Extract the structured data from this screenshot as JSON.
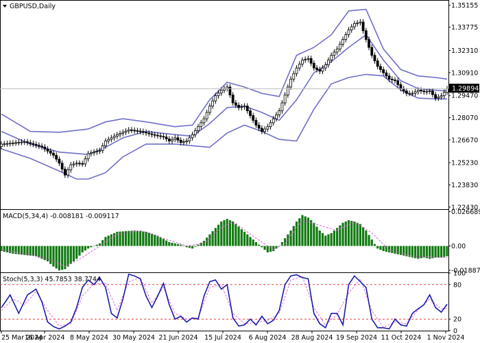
{
  "chart_data": {
    "type": "candlestick",
    "symbol_label": "GBPUSD,Daily",
    "last_price": "1.29894",
    "price_axis": {
      "ticks": [
        "1.35155",
        "1.33775",
        "1.32310",
        "1.30910",
        "1.29470",
        "1.28070",
        "1.26670",
        "1.25230",
        "1.23830",
        "1.22430"
      ],
      "ylim": [
        1.22295,
        1.35445
      ]
    },
    "date_labels": [
      "25 Mar 2024",
      "16 Apr 2024",
      "8 May 2024",
      "30 May 2024",
      "21 Jun 2024",
      "15 Jul 2024",
      "6 Aug 2024",
      "28 Aug 2024",
      "19 Sep 2024",
      "11 Oct 2024",
      "1 Nov 2024"
    ],
    "price_path": [
      [
        0,
        1.264
      ],
      [
        8,
        1.2655
      ],
      [
        14,
        1.2622
      ],
      [
        18,
        1.257
      ],
      [
        20,
        1.252
      ],
      [
        22,
        1.2445
      ],
      [
        24,
        1.251
      ],
      [
        26,
        1.252
      ],
      [
        28,
        1.2515
      ],
      [
        30,
        1.258
      ],
      [
        34,
        1.26
      ],
      [
        36,
        1.266
      ],
      [
        40,
        1.27
      ],
      [
        44,
        1.273
      ],
      [
        48,
        1.272
      ],
      [
        52,
        1.27
      ],
      [
        56,
        1.2685
      ],
      [
        58,
        1.266
      ],
      [
        60,
        1.268
      ],
      [
        62,
        1.265
      ],
      [
        64,
        1.266
      ],
      [
        66,
        1.27
      ],
      [
        68,
        1.275
      ],
      [
        70,
        1.28
      ],
      [
        72,
        1.288
      ],
      [
        74,
        1.2945
      ],
      [
        76,
        1.298
      ],
      [
        78,
        1.3
      ],
      [
        80,
        1.29
      ],
      [
        82,
        1.287
      ],
      [
        84,
        1.288
      ],
      [
        86,
        1.282
      ],
      [
        88,
        1.276
      ],
      [
        90,
        1.272
      ],
      [
        92,
        1.275
      ],
      [
        94,
        1.28
      ],
      [
        96,
        1.285
      ],
      [
        98,
        1.295
      ],
      [
        100,
        1.305
      ],
      [
        102,
        1.312
      ],
      [
        104,
        1.317
      ],
      [
        106,
        1.318
      ],
      [
        108,
        1.312
      ],
      [
        110,
        1.31
      ],
      [
        112,
        1.314
      ],
      [
        114,
        1.32
      ],
      [
        116,
        1.324
      ],
      [
        118,
        1.33
      ],
      [
        120,
        1.336
      ],
      [
        122,
        1.34
      ],
      [
        124,
        1.341
      ],
      [
        126,
        1.33
      ],
      [
        128,
        1.32
      ],
      [
        130,
        1.313
      ],
      [
        132,
        1.309
      ],
      [
        134,
        1.305
      ],
      [
        136,
        1.304
      ],
      [
        138,
        1.299
      ],
      [
        140,
        1.296
      ],
      [
        142,
        1.296
      ],
      [
        144,
        1.298
      ],
      [
        146,
        1.297
      ],
      [
        148,
        1.2975
      ],
      [
        150,
        1.293
      ],
      [
        152,
        1.2945
      ],
      [
        154,
        1.2989
      ]
    ],
    "bollinger_bands": {
      "upper": [
        [
          0,
          1.283
        ],
        [
          10,
          1.272
        ],
        [
          20,
          1.2715
        ],
        [
          30,
          1.2735
        ],
        [
          36,
          1.278
        ],
        [
          42,
          1.28
        ],
        [
          50,
          1.278
        ],
        [
          60,
          1.275
        ],
        [
          66,
          1.276
        ],
        [
          72,
          1.292
        ],
        [
          78,
          1.303
        ],
        [
          84,
          1.3
        ],
        [
          90,
          1.296
        ],
        [
          96,
          1.294
        ],
        [
          102,
          1.32
        ],
        [
          108,
          1.325
        ],
        [
          114,
          1.333
        ],
        [
          120,
          1.348
        ],
        [
          126,
          1.349
        ],
        [
          132,
          1.324
        ],
        [
          138,
          1.311
        ],
        [
          144,
          1.307
        ],
        [
          150,
          1.306
        ],
        [
          154,
          1.305
        ]
      ],
      "middle": [
        [
          0,
          1.272
        ],
        [
          10,
          1.264
        ],
        [
          20,
          1.259
        ],
        [
          30,
          1.2575
        ],
        [
          36,
          1.262
        ],
        [
          42,
          1.268
        ],
        [
          50,
          1.272
        ],
        [
          60,
          1.27
        ],
        [
          66,
          1.269
        ],
        [
          72,
          1.277
        ],
        [
          78,
          1.287
        ],
        [
          84,
          1.288
        ],
        [
          90,
          1.284
        ],
        [
          96,
          1.279
        ],
        [
          102,
          1.292
        ],
        [
          108,
          1.309
        ],
        [
          114,
          1.316
        ],
        [
          120,
          1.325
        ],
        [
          126,
          1.333
        ],
        [
          132,
          1.317
        ],
        [
          138,
          1.304
        ],
        [
          144,
          1.299
        ],
        [
          150,
          1.298
        ],
        [
          154,
          1.2975
        ]
      ],
      "lower": [
        [
          0,
          1.261
        ],
        [
          10,
          1.255
        ],
        [
          20,
          1.247
        ],
        [
          26,
          1.242
        ],
        [
          30,
          1.242
        ],
        [
          36,
          1.246
        ],
        [
          42,
          1.256
        ],
        [
          50,
          1.264
        ],
        [
          60,
          1.264
        ],
        [
          66,
          1.263
        ],
        [
          72,
          1.262
        ],
        [
          78,
          1.271
        ],
        [
          84,
          1.276
        ],
        [
          90,
          1.272
        ],
        [
          96,
          1.267
        ],
        [
          102,
          1.266
        ],
        [
          108,
          1.286
        ],
        [
          114,
          1.302
        ],
        [
          120,
          1.306
        ],
        [
          126,
          1.308
        ],
        [
          132,
          1.307
        ],
        [
          138,
          1.298
        ],
        [
          144,
          1.293
        ],
        [
          150,
          1.2925
        ],
        [
          154,
          1.2925
        ]
      ]
    },
    "macd": {
      "label": "MACD(5,34,4) -0.008181 -0.009117",
      "ticks": [
        "0.026689",
        "0.00",
        "-0.018877"
      ],
      "ylim": [
        -0.0205,
        0.028
      ],
      "histogram": [
        [
          0,
          -0.004
        ],
        [
          4,
          -0.006
        ],
        [
          8,
          -0.007
        ],
        [
          12,
          -0.008
        ],
        [
          16,
          -0.012
        ],
        [
          18,
          -0.016
        ],
        [
          20,
          -0.019
        ],
        [
          22,
          -0.018
        ],
        [
          24,
          -0.014
        ],
        [
          26,
          -0.01
        ],
        [
          28,
          -0.005
        ],
        [
          30,
          -0.002
        ],
        [
          32,
          0.0
        ],
        [
          34,
          0.002
        ],
        [
          36,
          0.007
        ],
        [
          40,
          0.011
        ],
        [
          46,
          0.012
        ],
        [
          50,
          0.011
        ],
        [
          54,
          0.008
        ],
        [
          58,
          0.003
        ],
        [
          62,
          0.001
        ],
        [
          64,
          -0.001
        ],
        [
          66,
          -0.002
        ],
        [
          68,
          0.001
        ],
        [
          70,
          0.004
        ],
        [
          72,
          0.009
        ],
        [
          74,
          0.014
        ],
        [
          76,
          0.019
        ],
        [
          78,
          0.021
        ],
        [
          80,
          0.019
        ],
        [
          82,
          0.015
        ],
        [
          84,
          0.011
        ],
        [
          86,
          0.007
        ],
        [
          88,
          0.003
        ],
        [
          90,
          -0.001
        ],
        [
          92,
          -0.005
        ],
        [
          94,
          -0.004
        ],
        [
          96,
          0.0
        ],
        [
          98,
          0.006
        ],
        [
          100,
          0.012
        ],
        [
          102,
          0.019
        ],
        [
          104,
          0.024
        ],
        [
          106,
          0.022
        ],
        [
          108,
          0.018
        ],
        [
          110,
          0.012
        ],
        [
          112,
          0.008
        ],
        [
          114,
          0.01
        ],
        [
          116,
          0.014
        ],
        [
          118,
          0.018
        ],
        [
          120,
          0.02
        ],
        [
          122,
          0.019
        ],
        [
          124,
          0.017
        ],
        [
          126,
          0.012
        ],
        [
          128,
          0.005
        ],
        [
          130,
          -0.002
        ],
        [
          132,
          -0.004
        ],
        [
          134,
          -0.005
        ],
        [
          136,
          -0.006
        ],
        [
          138,
          -0.007
        ],
        [
          140,
          -0.008
        ],
        [
          142,
          -0.009
        ],
        [
          144,
          -0.01
        ],
        [
          146,
          -0.009
        ],
        [
          148,
          -0.01
        ],
        [
          150,
          -0.009
        ],
        [
          152,
          -0.009
        ],
        [
          154,
          -0.008
        ]
      ],
      "signal": [
        [
          0,
          -0.003
        ],
        [
          8,
          -0.006
        ],
        [
          16,
          -0.01
        ],
        [
          22,
          -0.016
        ],
        [
          28,
          -0.009
        ],
        [
          34,
          0.0
        ],
        [
          40,
          0.009
        ],
        [
          48,
          0.012
        ],
        [
          56,
          0.006
        ],
        [
          64,
          0.0
        ],
        [
          70,
          0.002
        ],
        [
          76,
          0.014
        ],
        [
          80,
          0.019
        ],
        [
          88,
          0.006
        ],
        [
          94,
          -0.003
        ],
        [
          98,
          0.002
        ],
        [
          104,
          0.02
        ],
        [
          110,
          0.016
        ],
        [
          116,
          0.012
        ],
        [
          122,
          0.019
        ],
        [
          128,
          0.01
        ],
        [
          134,
          -0.003
        ],
        [
          142,
          -0.008
        ],
        [
          154,
          -0.009
        ]
      ]
    },
    "stochastic": {
      "label": "Stoch(5,3,3) 45.7853 38.7744",
      "ticks": [
        "100",
        "80",
        "20",
        "0"
      ],
      "levels": [
        80,
        20
      ],
      "ylim": [
        0,
        100
      ],
      "main": [
        [
          0,
          40
        ],
        [
          3,
          62
        ],
        [
          6,
          30
        ],
        [
          9,
          62
        ],
        [
          12,
          72
        ],
        [
          14,
          50
        ],
        [
          16,
          15
        ],
        [
          18,
          7
        ],
        [
          20,
          3
        ],
        [
          22,
          8
        ],
        [
          24,
          15
        ],
        [
          26,
          40
        ],
        [
          28,
          75
        ],
        [
          30,
          88
        ],
        [
          32,
          80
        ],
        [
          34,
          92
        ],
        [
          36,
          75
        ],
        [
          38,
          30
        ],
        [
          40,
          22
        ],
        [
          42,
          55
        ],
        [
          44,
          98
        ],
        [
          46,
          95
        ],
        [
          48,
          90
        ],
        [
          50,
          60
        ],
        [
          52,
          40
        ],
        [
          54,
          60
        ],
        [
          56,
          82
        ],
        [
          58,
          45
        ],
        [
          60,
          20
        ],
        [
          62,
          25
        ],
        [
          64,
          15
        ],
        [
          66,
          22
        ],
        [
          68,
          20
        ],
        [
          70,
          60
        ],
        [
          72,
          85
        ],
        [
          74,
          88
        ],
        [
          76,
          72
        ],
        [
          78,
          80
        ],
        [
          80,
          22
        ],
        [
          82,
          8
        ],
        [
          84,
          10
        ],
        [
          86,
          20
        ],
        [
          88,
          10
        ],
        [
          90,
          25
        ],
        [
          92,
          12
        ],
        [
          94,
          18
        ],
        [
          96,
          35
        ],
        [
          98,
          80
        ],
        [
          100,
          95
        ],
        [
          102,
          97
        ],
        [
          104,
          92
        ],
        [
          106,
          90
        ],
        [
          108,
          30
        ],
        [
          110,
          12
        ],
        [
          112,
          5
        ],
        [
          114,
          30
        ],
        [
          116,
          30
        ],
        [
          118,
          10
        ],
        [
          120,
          80
        ],
        [
          122,
          95
        ],
        [
          124,
          85
        ],
        [
          126,
          75
        ],
        [
          128,
          20
        ],
        [
          130,
          5
        ],
        [
          132,
          5
        ],
        [
          134,
          3
        ],
        [
          136,
          20
        ],
        [
          138,
          10
        ],
        [
          140,
          8
        ],
        [
          142,
          30
        ],
        [
          144,
          38
        ],
        [
          146,
          45
        ],
        [
          148,
          62
        ],
        [
          150,
          40
        ],
        [
          152,
          32
        ],
        [
          154,
          46
        ]
      ],
      "signal": [
        [
          0,
          35
        ],
        [
          4,
          55
        ],
        [
          8,
          45
        ],
        [
          12,
          68
        ],
        [
          16,
          35
        ],
        [
          20,
          8
        ],
        [
          24,
          12
        ],
        [
          28,
          60
        ],
        [
          32,
          82
        ],
        [
          36,
          82
        ],
        [
          40,
          35
        ],
        [
          44,
          85
        ],
        [
          48,
          92
        ],
        [
          52,
          48
        ],
        [
          56,
          75
        ],
        [
          60,
          30
        ],
        [
          64,
          20
        ],
        [
          68,
          22
        ],
        [
          72,
          75
        ],
        [
          76,
          80
        ],
        [
          80,
          30
        ],
        [
          84,
          12
        ],
        [
          88,
          14
        ],
        [
          92,
          18
        ],
        [
          96,
          30
        ],
        [
          100,
          88
        ],
        [
          104,
          94
        ],
        [
          108,
          40
        ],
        [
          112,
          10
        ],
        [
          116,
          28
        ],
        [
          120,
          65
        ],
        [
          124,
          90
        ],
        [
          128,
          35
        ],
        [
          132,
          6
        ],
        [
          136,
          15
        ],
        [
          140,
          12
        ],
        [
          144,
          36
        ],
        [
          148,
          55
        ],
        [
          152,
          38
        ],
        [
          154,
          39
        ]
      ]
    },
    "colors": {
      "bands": "#6e6ec8",
      "macd_histogram": "#117a11",
      "macd_signal": "#d65ad6",
      "stoch_main": "#1a1aa8",
      "stoch_signal": "#e06ae0",
      "levels": "#e04040",
      "candle": "#000000",
      "last_price_line": "#bbbbbb"
    }
  }
}
